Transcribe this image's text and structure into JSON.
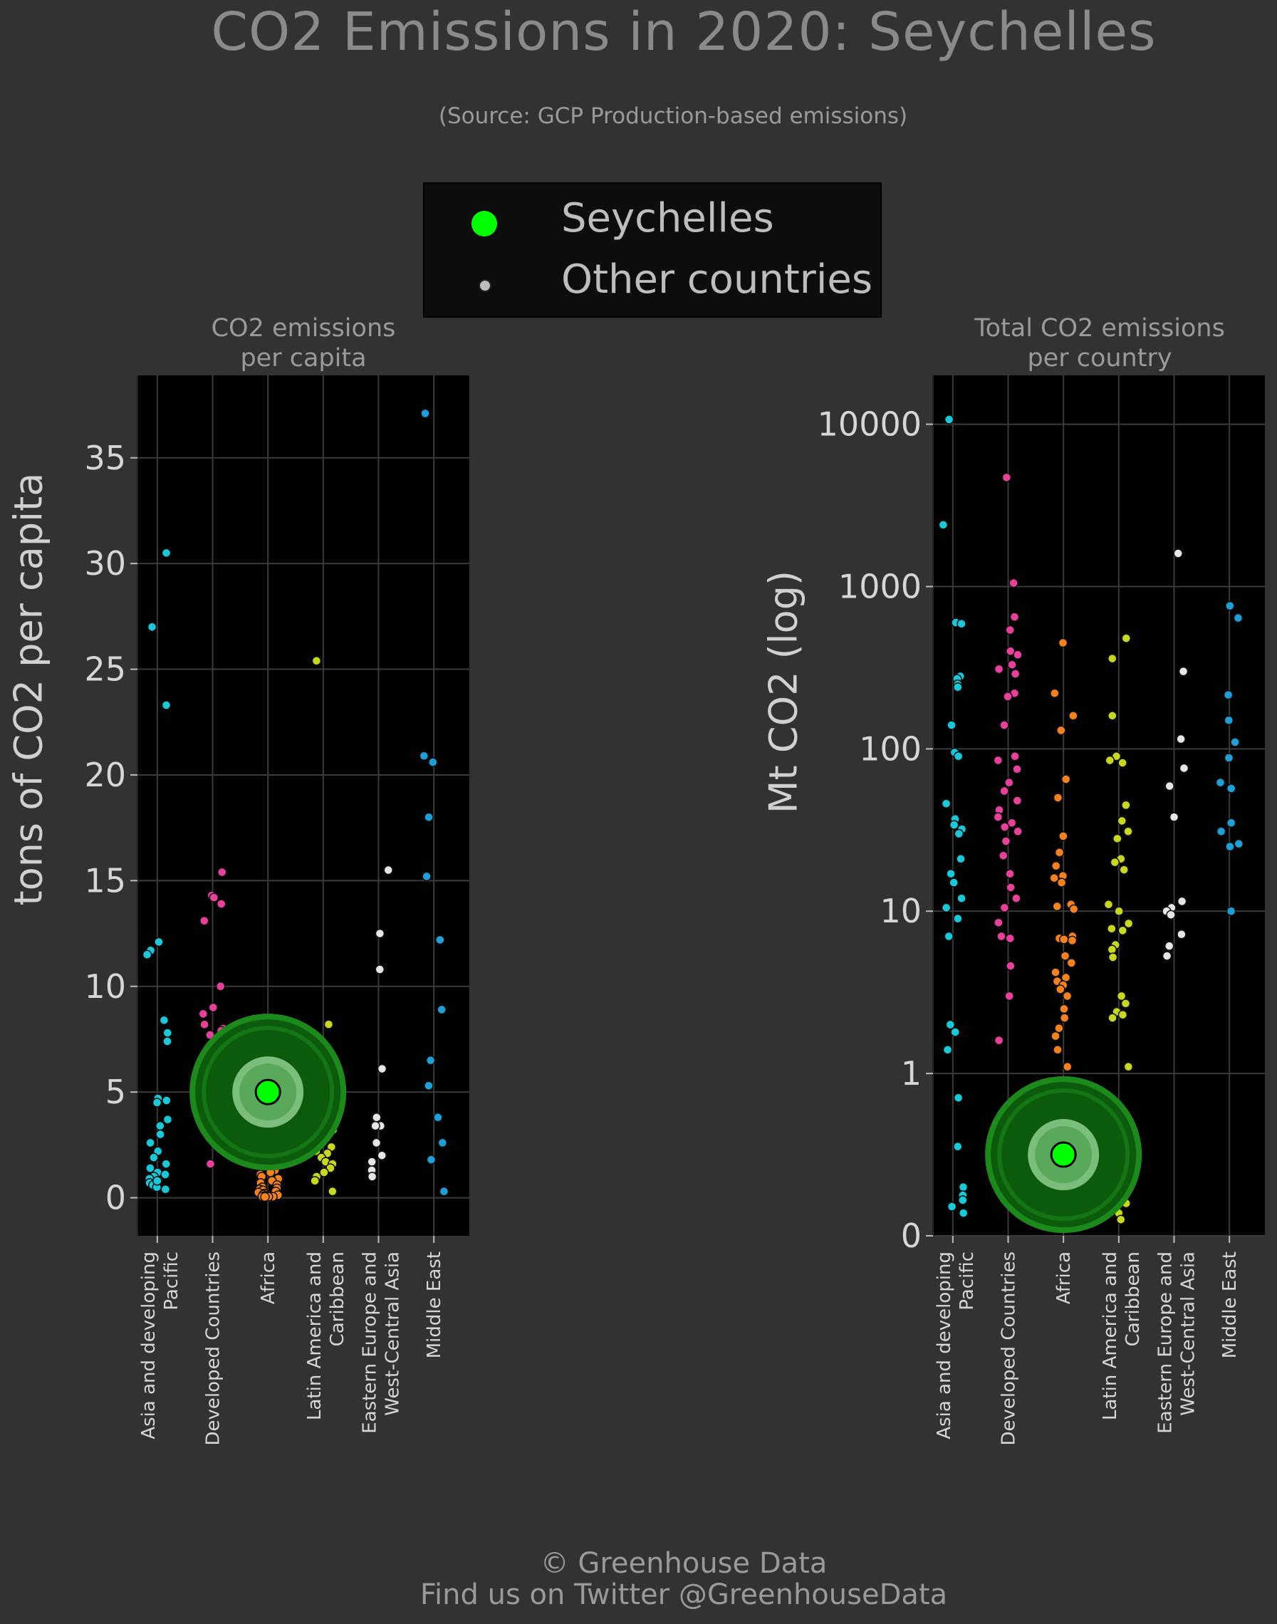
{
  "title": "CO2 Emissions in 2020: Seychelles",
  "subtitle": "(Source: GCP Production-based emissions)",
  "legend": {
    "highlight": "Seychelles",
    "others": "Other countries"
  },
  "footer": {
    "line1": "© Greenhouse Data",
    "line2": "Find us on Twitter @GreenhouseData"
  },
  "colors": {
    "background": "#323232",
    "plot_bg": "#000000",
    "highlight": "#00ff00",
    "regions": [
      "#19c9d9",
      "#e8409b",
      "#f5821f",
      "#c8d81e",
      "#e6e6e6",
      "#1e9fd8"
    ]
  },
  "chart_data": [
    {
      "type": "scatter",
      "title": "CO2 emissions\nper capita",
      "ylabel": "tons of CO2 per capita",
      "ylim": [
        -1.8,
        38.9
      ],
      "yticks": [
        "0",
        "5",
        "10",
        "15",
        "20",
        "25",
        "30",
        "35"
      ],
      "grid": true,
      "categories": [
        "Asia and developing\nPacific",
        "Developed Countries",
        "Africa",
        "Latin America and\nCaribbean",
        "Eastern Europe and\nWest-Central Asia",
        "Middle East"
      ],
      "highlight": {
        "name": "Seychelles",
        "category": "Africa",
        "value": 5.0
      },
      "series": [
        {
          "category": "Asia and developing\nPacific",
          "values": [
            30.5,
            27.0,
            23.3,
            12.1,
            11.7,
            11.5,
            8.4,
            7.8,
            7.4,
            4.7,
            4.6,
            4.5,
            3.7,
            3.4,
            3.0,
            2.6,
            2.2,
            1.9,
            1.6,
            1.4,
            1.2,
            1.0,
            0.9,
            0.8,
            0.7,
            0.6,
            0.5,
            0.4,
            1.1,
            0.8
          ]
        },
        {
          "category": "Developed Countries",
          "values": [
            15.4,
            14.3,
            14.2,
            13.9,
            13.1,
            10.0,
            9.0,
            8.7,
            8.2,
            8.0,
            7.9,
            7.7,
            7.3,
            7.1,
            6.9,
            6.6,
            6.2,
            6.0,
            5.6,
            5.3,
            5.1,
            4.9,
            4.7,
            4.5,
            4.3,
            4.1,
            3.9,
            3.8,
            3.7,
            1.6
          ]
        },
        {
          "category": "Africa",
          "values": [
            7.6,
            7.4,
            3.6,
            3.2,
            2.7,
            2.4,
            2.1,
            1.9,
            1.7,
            1.5,
            1.3,
            1.2,
            1.1,
            1.0,
            0.9,
            0.8,
            0.7,
            0.6,
            0.5,
            0.45,
            0.4,
            0.35,
            0.3,
            0.25,
            0.2,
            0.15,
            0.12,
            0.1,
            0.08,
            0.06,
            0.05,
            0.05,
            0.04
          ]
        },
        {
          "category": "Latin America and\nCaribbean",
          "values": [
            25.4,
            8.2,
            7.0,
            6.6,
            6.2,
            6.0,
            5.6,
            4.3,
            4.0,
            3.8,
            3.5,
            3.2,
            2.9,
            2.6,
            2.4,
            2.2,
            2.1,
            1.9,
            1.7,
            1.6,
            1.4,
            1.2,
            1.0,
            0.8,
            0.3
          ]
        },
        {
          "category": "Eastern Europe and\nWest-Central Asia",
          "values": [
            15.5,
            12.5,
            10.8,
            6.1,
            3.8,
            3.4,
            3.4,
            2.6,
            2.0,
            1.7,
            1.3,
            1.0
          ]
        },
        {
          "category": "Middle East",
          "values": [
            37.1,
            20.9,
            20.6,
            18.0,
            15.2,
            12.2,
            8.9,
            6.5,
            5.3,
            3.8,
            2.6,
            1.8,
            0.3
          ]
        }
      ]
    },
    {
      "type": "scatter",
      "title": "Total CO2 emissions\nper country",
      "ylabel": "Mt CO2 (log)",
      "yscale": "symlog",
      "ylim": [
        0,
        20000
      ],
      "yticks": [
        "0",
        "1",
        "10",
        "100",
        "1000",
        "10000"
      ],
      "grid": true,
      "categories": [
        "Asia and developing\nPacific",
        "Developed Countries",
        "Africa",
        "Latin America and\nCaribbean",
        "Eastern Europe and\nWest-Central Asia",
        "Middle East"
      ],
      "highlight": {
        "name": "Seychelles",
        "category": "Africa",
        "value": 0.5
      },
      "series": [
        {
          "category": "Asia and developing\nPacific",
          "values": [
            10700,
            2400,
            600,
            590,
            280,
            270,
            250,
            240,
            140,
            95,
            90,
            46,
            37,
            34,
            32,
            30,
            21,
            17,
            15,
            12,
            10.5,
            9,
            7,
            2,
            1.8,
            1.4,
            0.85,
            0.55,
            0.3,
            0.25,
            0.22,
            0.18,
            0.14
          ]
        },
        {
          "category": "Developed Countries",
          "values": [
            4700,
            1050,
            650,
            540,
            400,
            380,
            330,
            310,
            290,
            220,
            210,
            140,
            90,
            85,
            75,
            62,
            55,
            48,
            42,
            38,
            35,
            33,
            31,
            27,
            22,
            17,
            14,
            12,
            10.5,
            8.5,
            7,
            6.8,
            4.6,
            3.0,
            1.6,
            0.7,
            0.55
          ]
        },
        {
          "category": "Africa",
          "values": [
            450,
            220,
            160,
            130,
            65,
            50,
            29,
            23,
            19,
            16.5,
            16,
            15,
            11,
            10.7,
            10.3,
            7,
            6.8,
            6.7,
            6.6,
            5.3,
            4.8,
            4.2,
            3.9,
            3.7,
            3.5,
            3.3,
            3.0,
            2.5,
            2.2,
            1.9,
            1.7,
            1.4,
            1.1,
            0.9,
            0.75,
            0.6,
            0.45,
            0.35,
            0.25,
            0.18,
            0.06
          ]
        },
        {
          "category": "Latin America and\nCaribbean",
          "values": [
            480,
            360,
            160,
            90,
            85,
            82,
            45,
            36,
            31,
            28,
            21,
            20,
            18,
            11,
            10,
            8.4,
            7.8,
            7.6,
            6.2,
            5.8,
            5.2,
            3.0,
            2.7,
            2.4,
            2.3,
            2.2,
            1.1,
            0.75,
            0.7,
            0.6,
            0.45,
            0.42,
            0.3,
            0.2,
            0.14,
            0.1
          ]
        },
        {
          "category": "Eastern Europe and\nWest-Central Asia",
          "values": [
            1600,
            300,
            115,
            76,
            59,
            38,
            11.5,
            10.5,
            10,
            9.5,
            7.2,
            6.1,
            5.3
          ]
        },
        {
          "category": "Middle East",
          "values": [
            760,
            640,
            215,
            150,
            110,
            88,
            62,
            57,
            35,
            31,
            26,
            25,
            10
          ]
        }
      ]
    }
  ]
}
